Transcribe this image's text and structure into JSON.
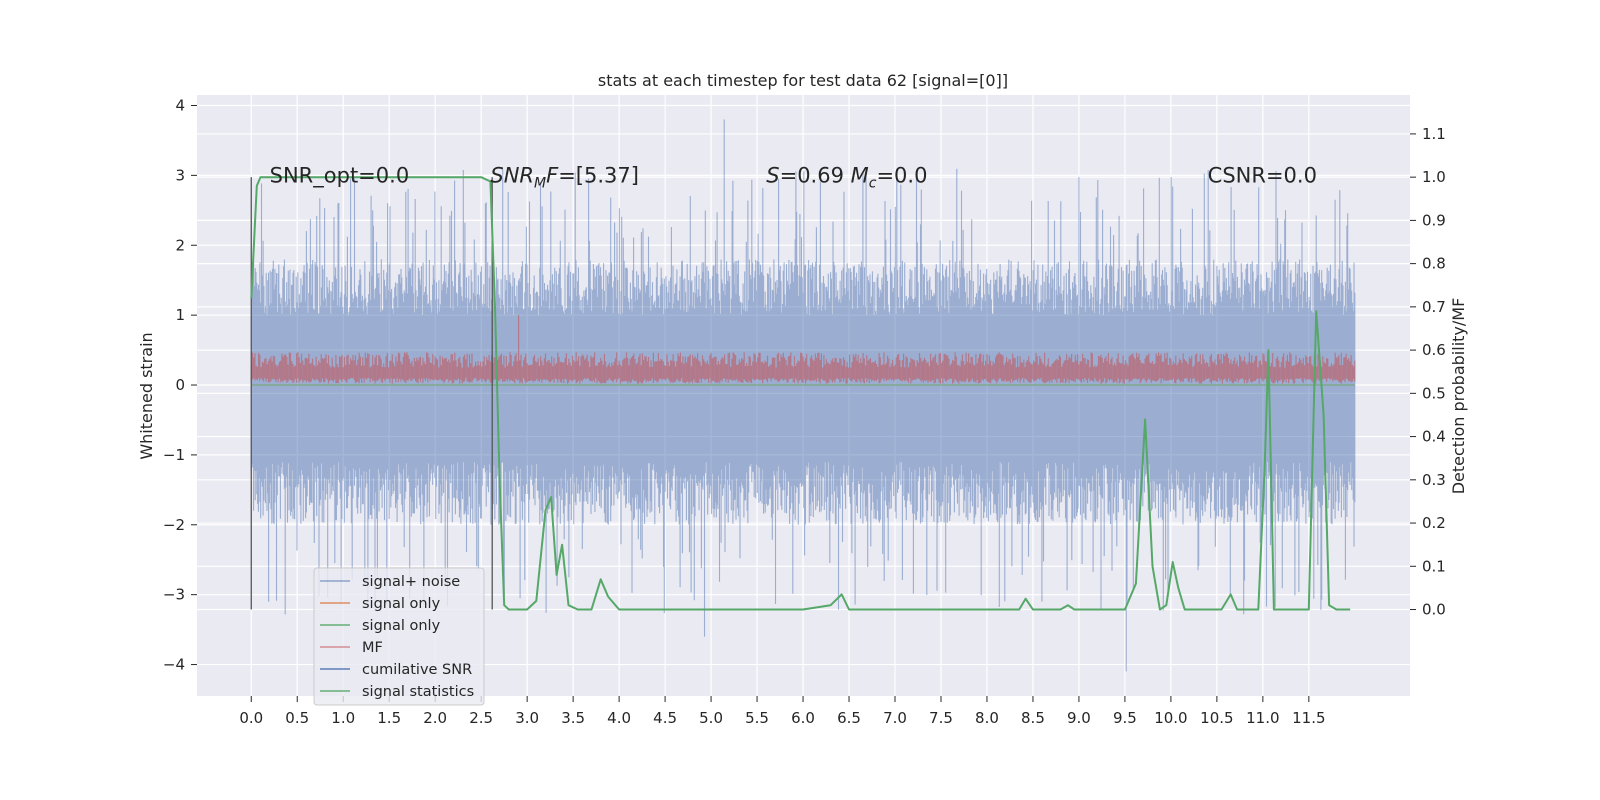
{
  "chart_data": {
    "type": "line",
    "title": "stats at each timestep for test data 62 [signal=[0]]",
    "ylabel": "Whitened strain",
    "ylabel_right": "Detection probability/MF",
    "xlim": [
      -0.59,
      12.6
    ],
    "ylim": [
      -4.45,
      4.15
    ],
    "ylim_right": [
      -0.2,
      1.19
    ],
    "grid": true,
    "legend_position": "lower-left",
    "x_ticks": [
      "0.0",
      "0.5",
      "1.0",
      "1.5",
      "2.0",
      "2.5",
      "3.0",
      "3.5",
      "4.0",
      "4.5",
      "5.0",
      "5.5",
      "6.0",
      "6.5",
      "7.0",
      "7.5",
      "8.0",
      "8.5",
      "9.0",
      "9.5",
      "10.0",
      "10.5",
      "11.0",
      "11.5"
    ],
    "y_ticks": [
      "−4",
      "−3",
      "−2",
      "−1",
      "0",
      "1",
      "2",
      "3",
      "4"
    ],
    "y_ticks_right": [
      "0.0",
      "0.1",
      "0.2",
      "0.3",
      "0.4",
      "0.5",
      "0.6",
      "0.7",
      "0.8",
      "0.9",
      "1.0",
      "1.1"
    ],
    "y_tick_values": [
      -4,
      -3,
      -2,
      -1,
      0,
      1,
      2,
      3,
      4
    ],
    "y_right_tick_values": [
      0,
      0.1,
      0.2,
      0.3,
      0.4,
      0.5,
      0.6,
      0.7,
      0.8,
      0.9,
      1.0,
      1.1
    ],
    "annotations": [
      {
        "text": "SNR_opt=0.0",
        "x": 0.2,
        "y": 3.0
      },
      {
        "text": "SNR_MF=[5.37]",
        "x": 2.6,
        "y": 3.0
      },
      {
        "text": "S=0.69   M_c=0.0",
        "x": 5.6,
        "y": 3.0
      },
      {
        "text": "CSNR=0.0",
        "x": 10.4,
        "y": 3.0
      }
    ],
    "vlines": [
      0.0,
      2.62
    ],
    "series": [
      {
        "name": "signal+ noise",
        "color": "#4c72b0",
        "x_range": [
          0.0,
          12.0
        ],
        "band_envelope_pct": {
          "upper_typical": 1.5,
          "lower_typical": -1.7,
          "max": 3.8,
          "min": -4.1
        }
      },
      {
        "name": "signal only",
        "color": "#dd8452",
        "values_constant": 0.0
      },
      {
        "name": "signal only",
        "color": "#55a868",
        "values_constant": 0.0
      },
      {
        "name": "MF",
        "color": "#c44e52",
        "x_range": [
          0.0,
          12.0
        ],
        "band_envelope": {
          "upper_typical": 0.45,
          "lower_typical": 0.0,
          "max": 1.0
        }
      },
      {
        "name": "cumilative SNR",
        "color": "#4c72b0"
      },
      {
        "name": "signal statistics",
        "color": "#55a868",
        "axis": "right",
        "points": [
          [
            0.0,
            0.72
          ],
          [
            0.06,
            0.98
          ],
          [
            0.1,
            1.0
          ],
          [
            0.5,
            1.0
          ],
          [
            1.0,
            1.0
          ],
          [
            1.5,
            1.0
          ],
          [
            2.0,
            1.0
          ],
          [
            2.5,
            1.0
          ],
          [
            2.6,
            0.99
          ],
          [
            2.65,
            0.7
          ],
          [
            2.7,
            0.3
          ],
          [
            2.75,
            0.01
          ],
          [
            2.8,
            0.0
          ],
          [
            3.0,
            0.0
          ],
          [
            3.1,
            0.02
          ],
          [
            3.2,
            0.23
          ],
          [
            3.26,
            0.26
          ],
          [
            3.32,
            0.08
          ],
          [
            3.38,
            0.15
          ],
          [
            3.45,
            0.01
          ],
          [
            3.55,
            0.0
          ],
          [
            3.7,
            0.0
          ],
          [
            3.8,
            0.07
          ],
          [
            3.88,
            0.03
          ],
          [
            4.0,
            0.0
          ],
          [
            5.0,
            0.0
          ],
          [
            6.0,
            0.0
          ],
          [
            6.3,
            0.01
          ],
          [
            6.42,
            0.035
          ],
          [
            6.5,
            0.0
          ],
          [
            7.0,
            0.0
          ],
          [
            8.0,
            0.0
          ],
          [
            8.35,
            0.0
          ],
          [
            8.42,
            0.025
          ],
          [
            8.5,
            0.0
          ],
          [
            8.8,
            0.0
          ],
          [
            8.88,
            0.01
          ],
          [
            8.95,
            0.0
          ],
          [
            9.5,
            0.0
          ],
          [
            9.62,
            0.06
          ],
          [
            9.72,
            0.44
          ],
          [
            9.8,
            0.1
          ],
          [
            9.88,
            0.0
          ],
          [
            9.95,
            0.01
          ],
          [
            10.02,
            0.11
          ],
          [
            10.08,
            0.05
          ],
          [
            10.15,
            0.0
          ],
          [
            10.55,
            0.0
          ],
          [
            10.65,
            0.035
          ],
          [
            10.72,
            0.0
          ],
          [
            10.95,
            0.0
          ],
          [
            11.02,
            0.33
          ],
          [
            11.06,
            0.6
          ],
          [
            11.12,
            0.0
          ],
          [
            11.5,
            0.0
          ],
          [
            11.58,
            0.69
          ],
          [
            11.66,
            0.45
          ],
          [
            11.72,
            0.01
          ],
          [
            11.8,
            0.0
          ],
          [
            11.95,
            0.0
          ]
        ]
      }
    ]
  },
  "colors": {
    "background": "#eaeaf2",
    "grid": "#ffffff",
    "vline": "#555555"
  }
}
